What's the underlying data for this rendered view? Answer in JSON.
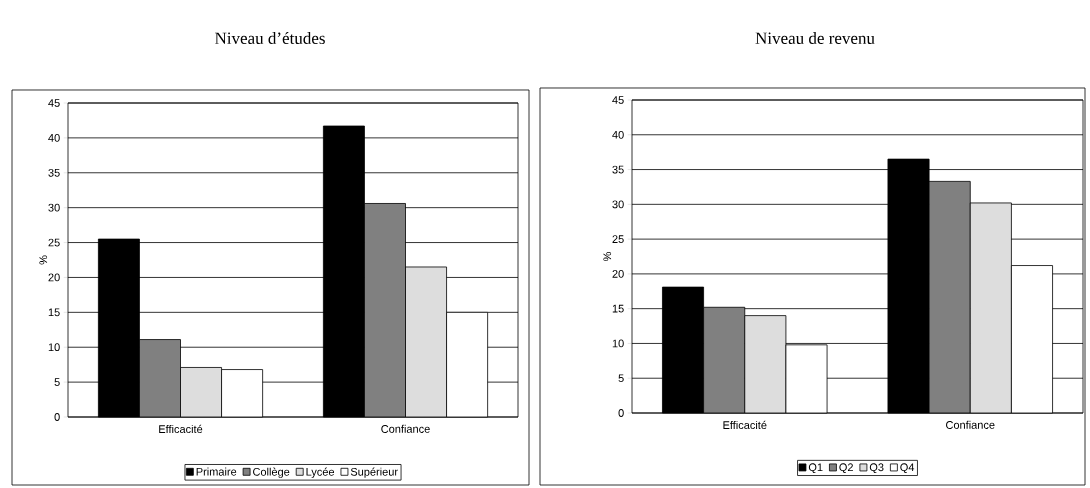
{
  "chart_data": [
    {
      "type": "bar",
      "title": "Niveau d’études",
      "ylabel": "%",
      "categories": [
        "Efficacité",
        "Confiance"
      ],
      "series": [
        {
          "name": "Primaire",
          "color": "#000000",
          "values": [
            25.5,
            41.7
          ]
        },
        {
          "name": "Collège",
          "color": "#808080",
          "values": [
            11.1,
            30.6
          ]
        },
        {
          "name": "Lycée",
          "color": "#dddddd",
          "values": [
            7.1,
            21.5
          ]
        },
        {
          "name": "Supérieur",
          "color": "#ffffff",
          "values": [
            6.8,
            15.0
          ]
        }
      ],
      "ylim": [
        0,
        45
      ],
      "yticks": [
        0,
        5,
        10,
        15,
        20,
        25,
        30,
        35,
        40,
        45
      ],
      "grid": "y",
      "legend": "bottom"
    },
    {
      "type": "bar",
      "title": "Niveau de revenu",
      "ylabel": "%",
      "categories": [
        "Efficacité",
        "Confiance"
      ],
      "series": [
        {
          "name": "Q1",
          "color": "#000000",
          "values": [
            18.1,
            36.5
          ]
        },
        {
          "name": "Q2",
          "color": "#808080",
          "values": [
            15.2,
            33.3
          ]
        },
        {
          "name": "Q3",
          "color": "#dddddd",
          "values": [
            14.0,
            30.2
          ]
        },
        {
          "name": "Q4",
          "color": "#ffffff",
          "values": [
            9.8,
            21.2
          ]
        }
      ],
      "ylim": [
        0,
        45
      ],
      "yticks": [
        0,
        5,
        10,
        15,
        20,
        25,
        30,
        35,
        40,
        45
      ],
      "grid": "y",
      "legend": "bottom"
    }
  ]
}
